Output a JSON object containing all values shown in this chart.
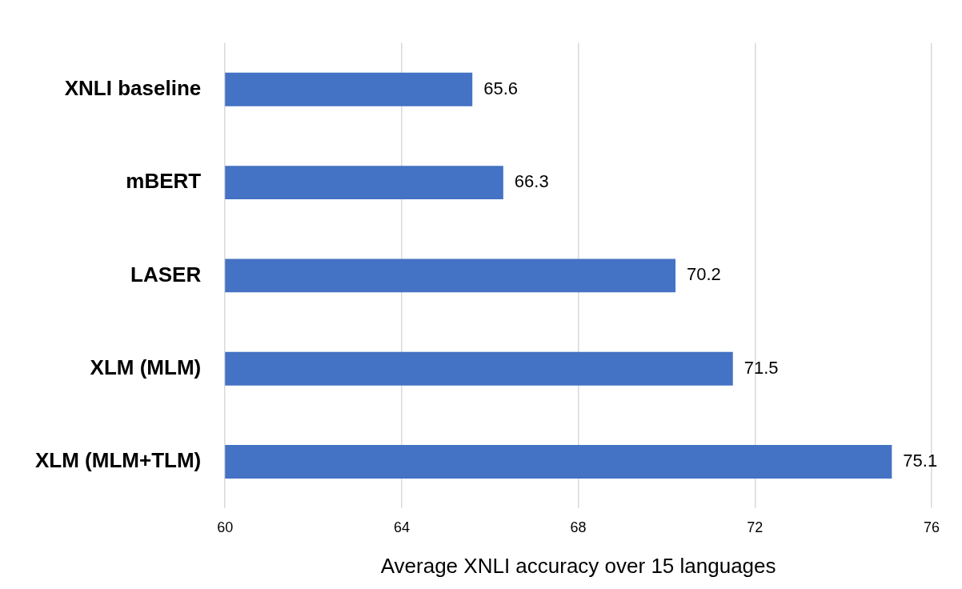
{
  "chart_data": {
    "type": "bar",
    "orientation": "horizontal",
    "xlabel": "Average XNLI accuracy over 15 languages",
    "categories": [
      "XNLI baseline",
      "mBERT",
      "LASER",
      "XLM (MLM)",
      "XLM (MLM+TLM)"
    ],
    "values": [
      65.6,
      66.3,
      70.2,
      71.5,
      75.1
    ],
    "color": "#4472c4",
    "xlim": [
      60,
      76
    ],
    "xticks": [
      60,
      64,
      68,
      72,
      76
    ],
    "grid": "x",
    "data_labels": true,
    "legend": false
  }
}
